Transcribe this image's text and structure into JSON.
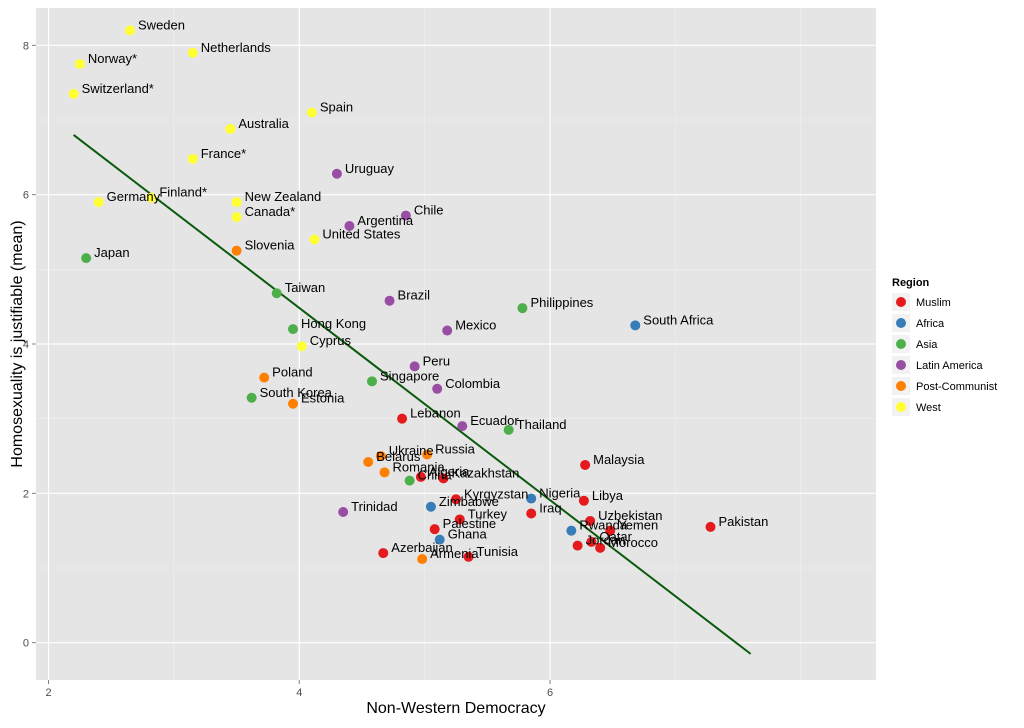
{
  "chart_data": {
    "type": "scatter",
    "title": "",
    "xlabel": "Non-Western Democracy",
    "ylabel": "Homosexuality is justifiable (mean)",
    "xlim": [
      1.9,
      8.6
    ],
    "ylim": [
      -0.5,
      8.5
    ],
    "x_ticks": [
      2,
      4,
      6
    ],
    "y_ticks": [
      0,
      2,
      4,
      6,
      8
    ],
    "grid": true,
    "legend_position": "right",
    "legend_title": "Region",
    "regions": [
      {
        "name": "Muslim",
        "color": "#e41a1c"
      },
      {
        "name": "Africa",
        "color": "#377eb8"
      },
      {
        "name": "Asia",
        "color": "#4daf4a"
      },
      {
        "name": "Latin America",
        "color": "#984ea3"
      },
      {
        "name": "Post-Communist",
        "color": "#ff7f00"
      },
      {
        "name": "West",
        "color": "#ffff33"
      }
    ],
    "trend_line": {
      "x": [
        2.2,
        7.6
      ],
      "y": [
        6.8,
        -0.15
      ],
      "color": "#0b5a0b"
    },
    "points": [
      {
        "label": "Sweden",
        "x": 2.65,
        "y": 8.2,
        "region": "West"
      },
      {
        "label": "Netherlands",
        "x": 3.15,
        "y": 7.9,
        "region": "West"
      },
      {
        "label": "Norway*",
        "x": 2.25,
        "y": 7.75,
        "region": "West"
      },
      {
        "label": "Switzerland*",
        "x": 2.2,
        "y": 7.35,
        "region": "West"
      },
      {
        "label": "Spain",
        "x": 4.1,
        "y": 7.1,
        "region": "West"
      },
      {
        "label": "Australia",
        "x": 3.45,
        "y": 6.88,
        "region": "West"
      },
      {
        "label": "France*",
        "x": 3.15,
        "y": 6.48,
        "region": "West"
      },
      {
        "label": "Uruguay",
        "x": 4.3,
        "y": 6.28,
        "region": "Latin America"
      },
      {
        "label": "Germany",
        "x": 2.4,
        "y": 5.9,
        "region": "West"
      },
      {
        "label": "Finland*",
        "x": 2.82,
        "y": 5.96,
        "region": "West"
      },
      {
        "label": "New Zealand",
        "x": 3.5,
        "y": 5.9,
        "region": "West"
      },
      {
        "label": "Canada*",
        "x": 3.5,
        "y": 5.7,
        "region": "West"
      },
      {
        "label": "Chile",
        "x": 4.85,
        "y": 5.72,
        "region": "Latin America"
      },
      {
        "label": "Argentina",
        "x": 4.4,
        "y": 5.58,
        "region": "Latin America"
      },
      {
        "label": "United States",
        "x": 4.12,
        "y": 5.4,
        "region": "West"
      },
      {
        "label": "Slovenia",
        "x": 3.5,
        "y": 5.25,
        "region": "Post-Communist"
      },
      {
        "label": "Japan",
        "x": 2.3,
        "y": 5.15,
        "region": "Asia"
      },
      {
        "label": "Taiwan",
        "x": 3.82,
        "y": 4.68,
        "region": "Asia"
      },
      {
        "label": "Brazil",
        "x": 4.72,
        "y": 4.58,
        "region": "Latin America"
      },
      {
        "label": "Philippines",
        "x": 5.78,
        "y": 4.48,
        "region": "Asia"
      },
      {
        "label": "South Africa",
        "x": 6.68,
        "y": 4.25,
        "region": "Africa"
      },
      {
        "label": "Hong Kong",
        "x": 3.95,
        "y": 4.2,
        "region": "Asia"
      },
      {
        "label": "Mexico",
        "x": 5.18,
        "y": 4.18,
        "region": "Latin America"
      },
      {
        "label": "Cyprus",
        "x": 4.02,
        "y": 3.97,
        "region": "West"
      },
      {
        "label": "Peru",
        "x": 4.92,
        "y": 3.7,
        "region": "Latin America"
      },
      {
        "label": "Poland",
        "x": 3.72,
        "y": 3.55,
        "region": "Post-Communist"
      },
      {
        "label": "Singapore",
        "x": 4.58,
        "y": 3.5,
        "region": "Asia"
      },
      {
        "label": "Colombia",
        "x": 5.1,
        "y": 3.4,
        "region": "Latin America"
      },
      {
        "label": "South Korea",
        "x": 3.62,
        "y": 3.28,
        "region": "Asia"
      },
      {
        "label": "Estonia",
        "x": 3.95,
        "y": 3.2,
        "region": "Post-Communist"
      },
      {
        "label": "Lebanon",
        "x": 4.82,
        "y": 3.0,
        "region": "Muslim"
      },
      {
        "label": "Ecuador",
        "x": 5.3,
        "y": 2.9,
        "region": "Latin America"
      },
      {
        "label": "Thailand",
        "x": 5.67,
        "y": 2.85,
        "region": "Asia"
      },
      {
        "label": "Belarus",
        "x": 4.55,
        "y": 2.42,
        "region": "Post-Communist"
      },
      {
        "label": "Ukraine",
        "x": 4.65,
        "y": 2.5,
        "region": "Post-Communist"
      },
      {
        "label": "Russia",
        "x": 5.02,
        "y": 2.52,
        "region": "Post-Communist"
      },
      {
        "label": "Romania",
        "x": 4.68,
        "y": 2.28,
        "region": "Post-Communist"
      },
      {
        "label": "Algeria",
        "x": 4.97,
        "y": 2.22,
        "region": "Muslim"
      },
      {
        "label": "Malaysia",
        "x": 6.28,
        "y": 2.38,
        "region": "Muslim"
      },
      {
        "label": "Kazakhstan",
        "x": 5.15,
        "y": 2.2,
        "region": "Muslim"
      },
      {
        "label": "China",
        "x": 4.88,
        "y": 2.17,
        "region": "Asia"
      },
      {
        "label": "Kyrgyzstan",
        "x": 5.25,
        "y": 1.92,
        "region": "Muslim"
      },
      {
        "label": "Nigeria",
        "x": 5.85,
        "y": 1.93,
        "region": "Africa"
      },
      {
        "label": "Libya",
        "x": 6.27,
        "y": 1.9,
        "region": "Muslim"
      },
      {
        "label": "Zimbabwe",
        "x": 5.05,
        "y": 1.82,
        "region": "Africa"
      },
      {
        "label": "Iraq",
        "x": 5.85,
        "y": 1.73,
        "region": "Muslim"
      },
      {
        "label": "Trinidad",
        "x": 4.35,
        "y": 1.75,
        "region": "Latin America"
      },
      {
        "label": "Uzbekistan",
        "x": 6.32,
        "y": 1.63,
        "region": "Muslim"
      },
      {
        "label": "Turkey",
        "x": 5.28,
        "y": 1.65,
        "region": "Muslim"
      },
      {
        "label": "Pakistan",
        "x": 7.28,
        "y": 1.55,
        "region": "Muslim"
      },
      {
        "label": "Palestine",
        "x": 5.08,
        "y": 1.52,
        "region": "Muslim"
      },
      {
        "label": "Rwanda",
        "x": 6.17,
        "y": 1.5,
        "region": "Africa"
      },
      {
        "label": "Yemen",
        "x": 6.48,
        "y": 1.5,
        "region": "Muslim"
      },
      {
        "label": "Ghana",
        "x": 5.12,
        "y": 1.38,
        "region": "Africa"
      },
      {
        "label": "Qatar",
        "x": 6.33,
        "y": 1.35,
        "region": "Muslim"
      },
      {
        "label": "Jordan",
        "x": 6.22,
        "y": 1.3,
        "region": "Muslim"
      },
      {
        "label": "Morocco",
        "x": 6.4,
        "y": 1.27,
        "region": "Muslim"
      },
      {
        "label": "Azerbaijan",
        "x": 4.67,
        "y": 1.2,
        "region": "Muslim"
      },
      {
        "label": "Tunisia",
        "x": 5.35,
        "y": 1.15,
        "region": "Muslim"
      },
      {
        "label": "Armenia",
        "x": 4.98,
        "y": 1.12,
        "region": "Post-Communist"
      }
    ]
  }
}
